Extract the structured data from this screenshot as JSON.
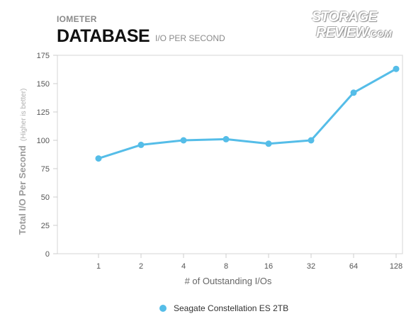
{
  "header": {
    "supertitle": "IOMETER",
    "title": "DATABASE",
    "subtitle": "I/O PER SECOND"
  },
  "logo": {
    "line1": "STORAGE",
    "line2": "REVIEW",
    "line2_suffix": ".COM"
  },
  "chart_data": {
    "type": "line",
    "categories": [
      "1",
      "2",
      "4",
      "8",
      "16",
      "32",
      "64",
      "128"
    ],
    "series": [
      {
        "name": "Seagate Constellation ES 2TB",
        "color": "#55bde8",
        "values": [
          84,
          96,
          100,
          101,
          97,
          100,
          142,
          163
        ]
      }
    ],
    "title": "DATABASE",
    "xlabel": "# of Outstanding I/Os",
    "ylabel": "Total I/O Per Second",
    "ylabel_note": "(Higher is better)",
    "ylim": [
      0,
      175
    ],
    "yticks": [
      0,
      25,
      50,
      75,
      100,
      125,
      150,
      175
    ],
    "grid": false,
    "legend": "bottom"
  }
}
